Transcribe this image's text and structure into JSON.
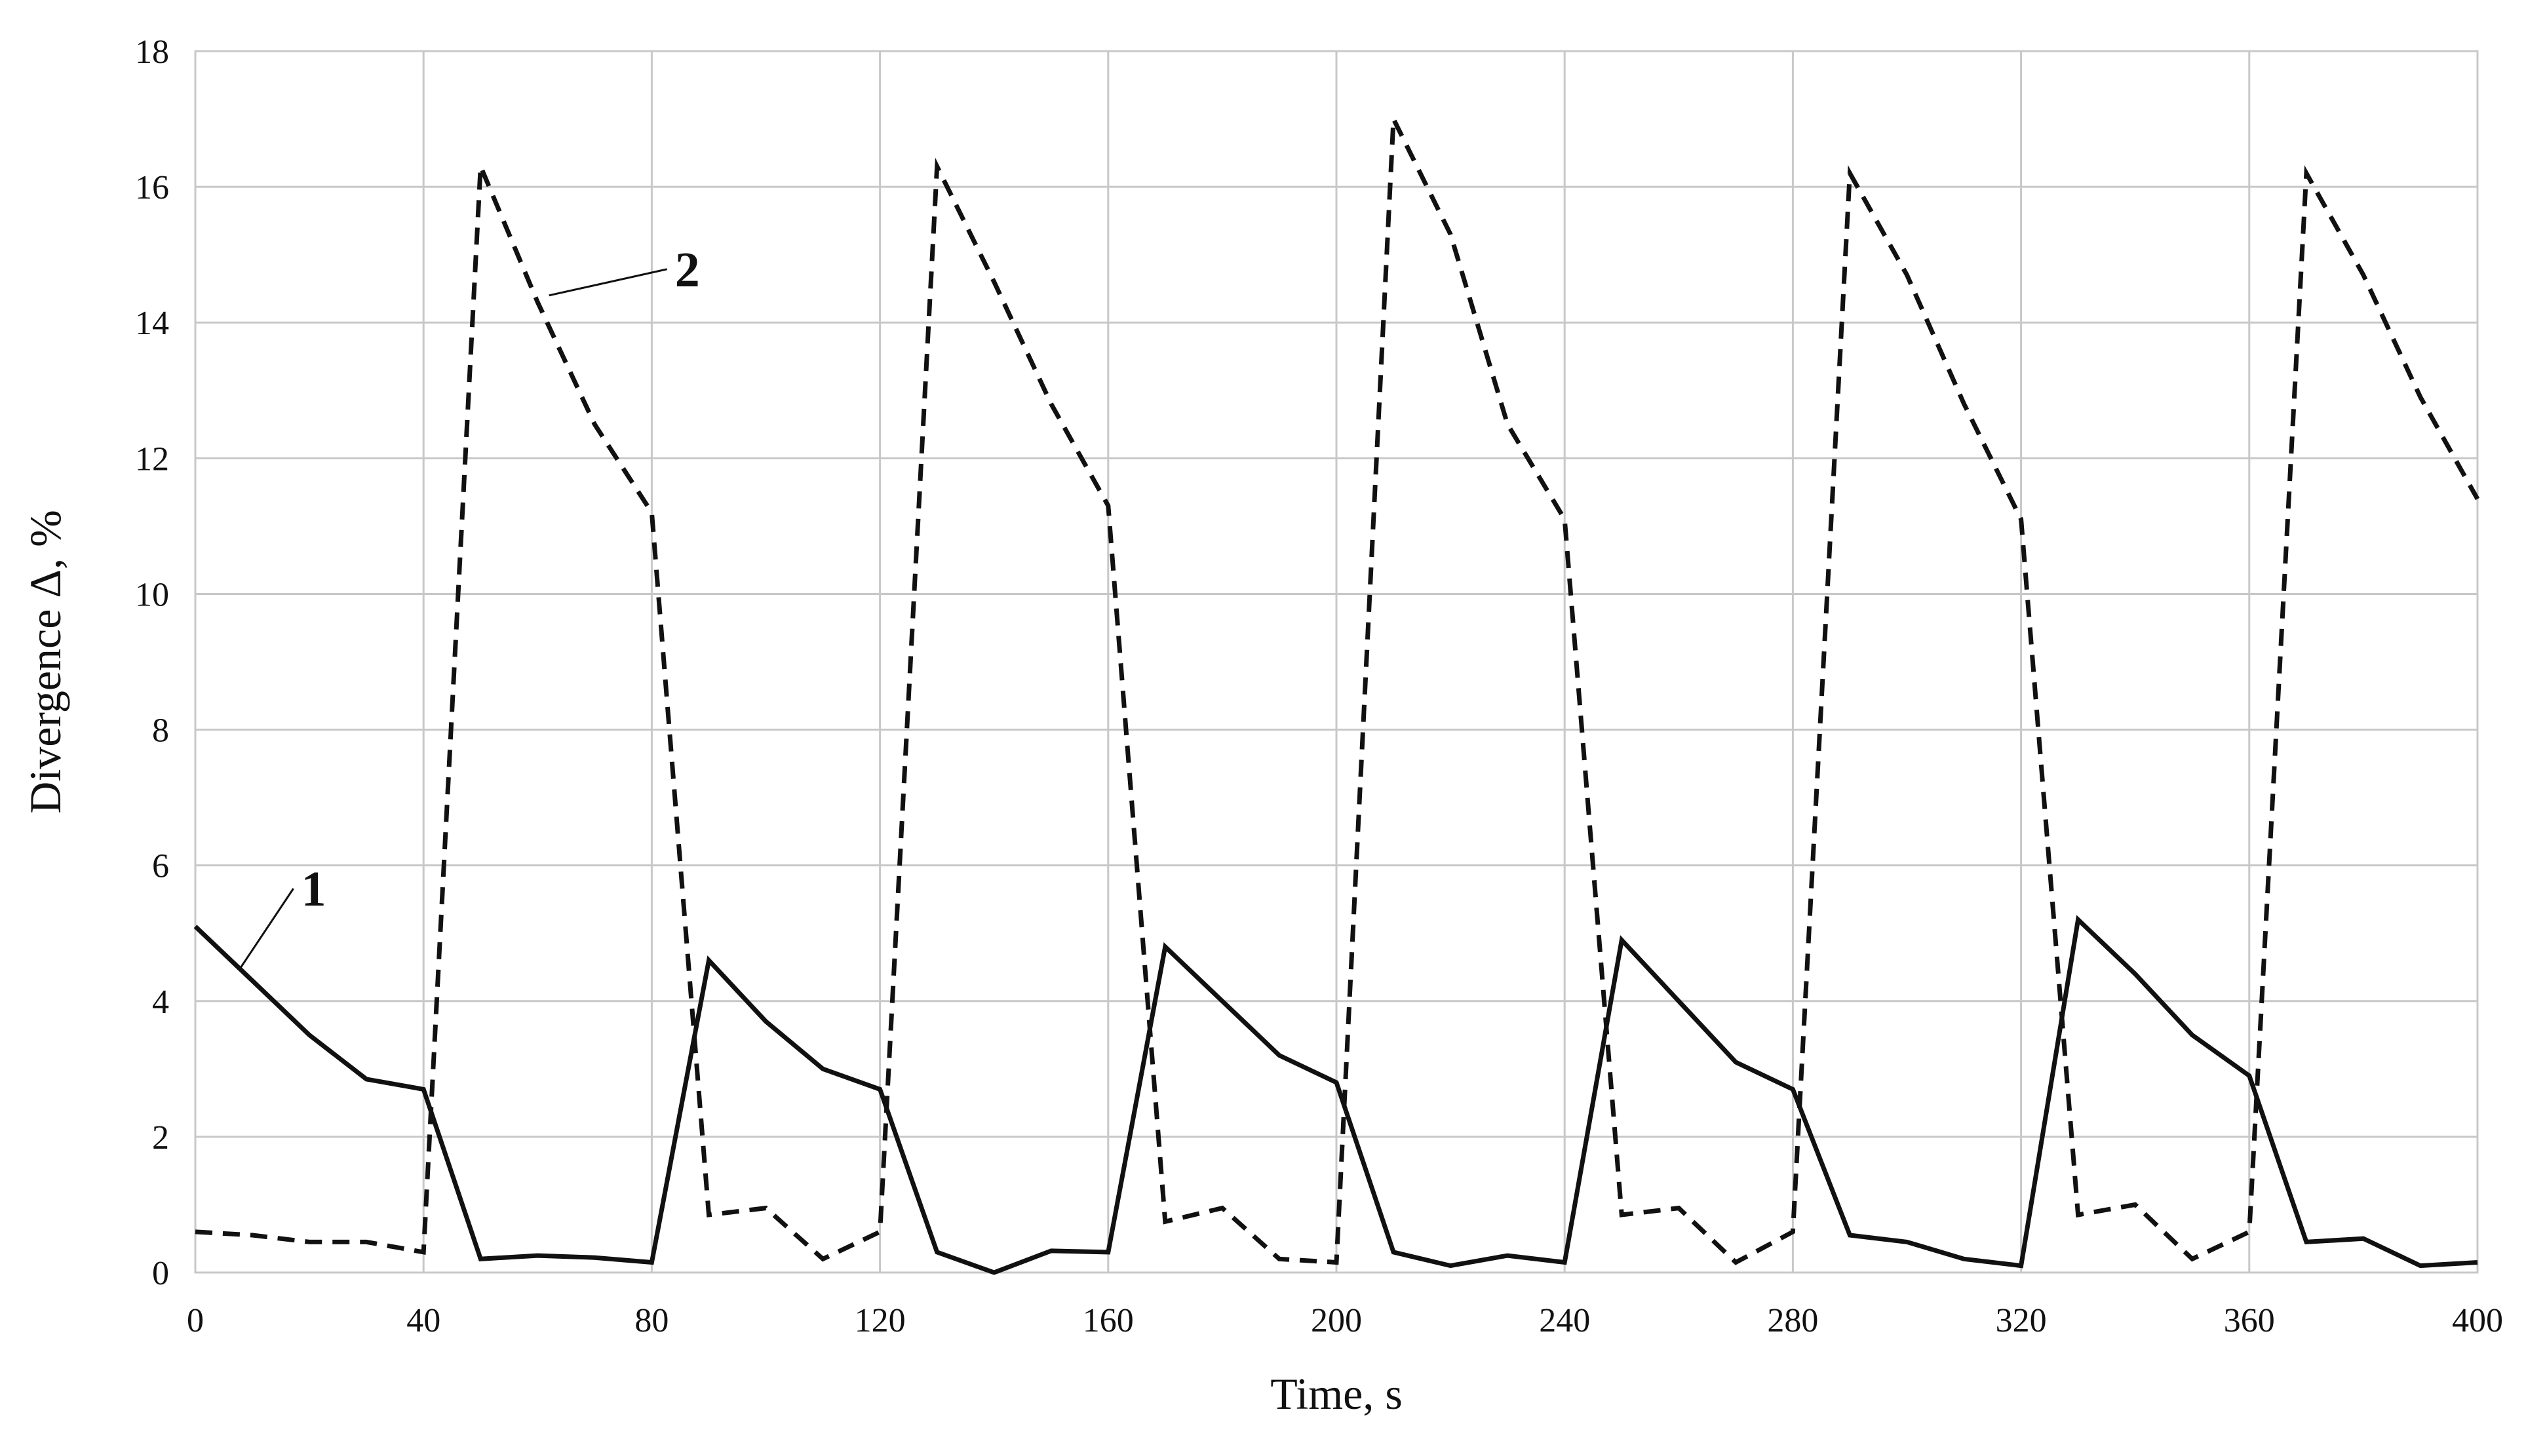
{
  "chart_data": {
    "type": "line",
    "title": "",
    "xlabel": "Time, s",
    "ylabel": "Divergence  Δ, %",
    "xlim": [
      0,
      400
    ],
    "ylim": [
      0,
      18
    ],
    "xticks": [
      0,
      40,
      80,
      120,
      160,
      200,
      240,
      280,
      320,
      360,
      400
    ],
    "yticks": [
      0,
      2,
      4,
      6,
      8,
      10,
      12,
      14,
      16,
      18
    ],
    "grid": true,
    "series": [
      {
        "name": "1",
        "style": "solid",
        "annotation_at": [
          8,
          4.5
        ],
        "x": [
          0,
          10,
          20,
          30,
          40,
          50,
          60,
          70,
          80,
          90,
          100,
          110,
          120,
          130,
          140,
          150,
          160,
          170,
          180,
          190,
          200,
          210,
          220,
          230,
          240,
          250,
          260,
          270,
          280,
          290,
          300,
          310,
          320,
          330,
          340,
          350,
          360,
          370,
          380,
          390,
          400
        ],
        "values": [
          5.1,
          4.3,
          3.5,
          2.85,
          2.7,
          0.2,
          0.25,
          0.22,
          0.15,
          4.6,
          3.7,
          3.0,
          2.7,
          0.3,
          0.0,
          0.32,
          0.3,
          4.8,
          4.0,
          3.2,
          2.8,
          0.3,
          0.1,
          0.25,
          0.15,
          4.9,
          4.0,
          3.1,
          2.7,
          0.55,
          0.45,
          0.2,
          0.1,
          5.2,
          4.4,
          3.5,
          2.9,
          0.45,
          0.5,
          0.1,
          0.15
        ]
      },
      {
        "name": "2",
        "style": "dashed",
        "annotation_at": [
          62,
          14.4
        ],
        "x": [
          0,
          10,
          20,
          30,
          40,
          50,
          60,
          70,
          80,
          90,
          100,
          110,
          120,
          130,
          140,
          150,
          160,
          170,
          180,
          190,
          200,
          210,
          220,
          230,
          240,
          250,
          260,
          270,
          280,
          290,
          300,
          310,
          320,
          330,
          340,
          350,
          360,
          370,
          380,
          390,
          400
        ],
        "values": [
          0.6,
          0.55,
          0.45,
          0.45,
          0.3,
          16.3,
          14.3,
          12.5,
          11.2,
          0.85,
          0.95,
          0.2,
          0.6,
          16.3,
          14.6,
          12.8,
          11.3,
          0.75,
          0.95,
          0.2,
          0.15,
          17.0,
          15.3,
          12.5,
          11.1,
          0.85,
          0.95,
          0.15,
          0.6,
          16.2,
          14.7,
          12.8,
          11.1,
          0.85,
          1.0,
          0.2,
          0.6,
          16.2,
          14.7,
          12.9,
          11.4
        ]
      }
    ]
  }
}
